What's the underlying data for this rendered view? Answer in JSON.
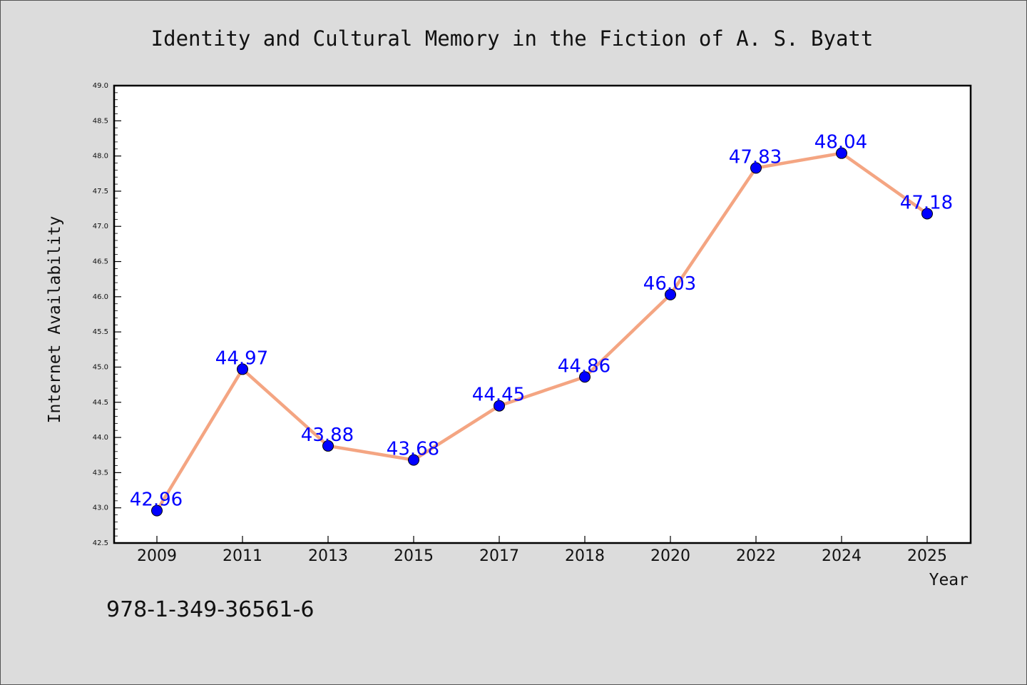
{
  "chart_data": {
    "type": "line",
    "title": "Identity and Cultural Memory in the Fiction of A. S. Byatt",
    "xlabel": "Year",
    "ylabel": "Internet Availability",
    "categories": [
      "2009",
      "2011",
      "2013",
      "2015",
      "2017",
      "2018",
      "2020",
      "2022",
      "2024",
      "2025"
    ],
    "series": [
      {
        "values": [
          42.96,
          44.97,
          43.88,
          43.68,
          44.45,
          44.86,
          46.03,
          47.83,
          48.04,
          47.18
        ],
        "labels": [
          "42.96",
          "44.97",
          "43.88",
          "43.68",
          "44.45",
          "44.86",
          "46.03",
          "47.83",
          "48.04",
          "47.18"
        ],
        "line_color": "#f4a582",
        "marker_color": "#0000ff",
        "label_color": "#0000ff"
      }
    ],
    "ylim": [
      42.5,
      49.0
    ],
    "yticks": [
      "42.5",
      "43.0",
      "43.5",
      "44.0",
      "44.5",
      "45.0",
      "45.5",
      "46.0",
      "46.5",
      "47.0",
      "47.5",
      "48.0",
      "48.5",
      "49.0"
    ],
    "grid": false,
    "legend": "none"
  },
  "footer_text": "978-1-349-36561-6"
}
